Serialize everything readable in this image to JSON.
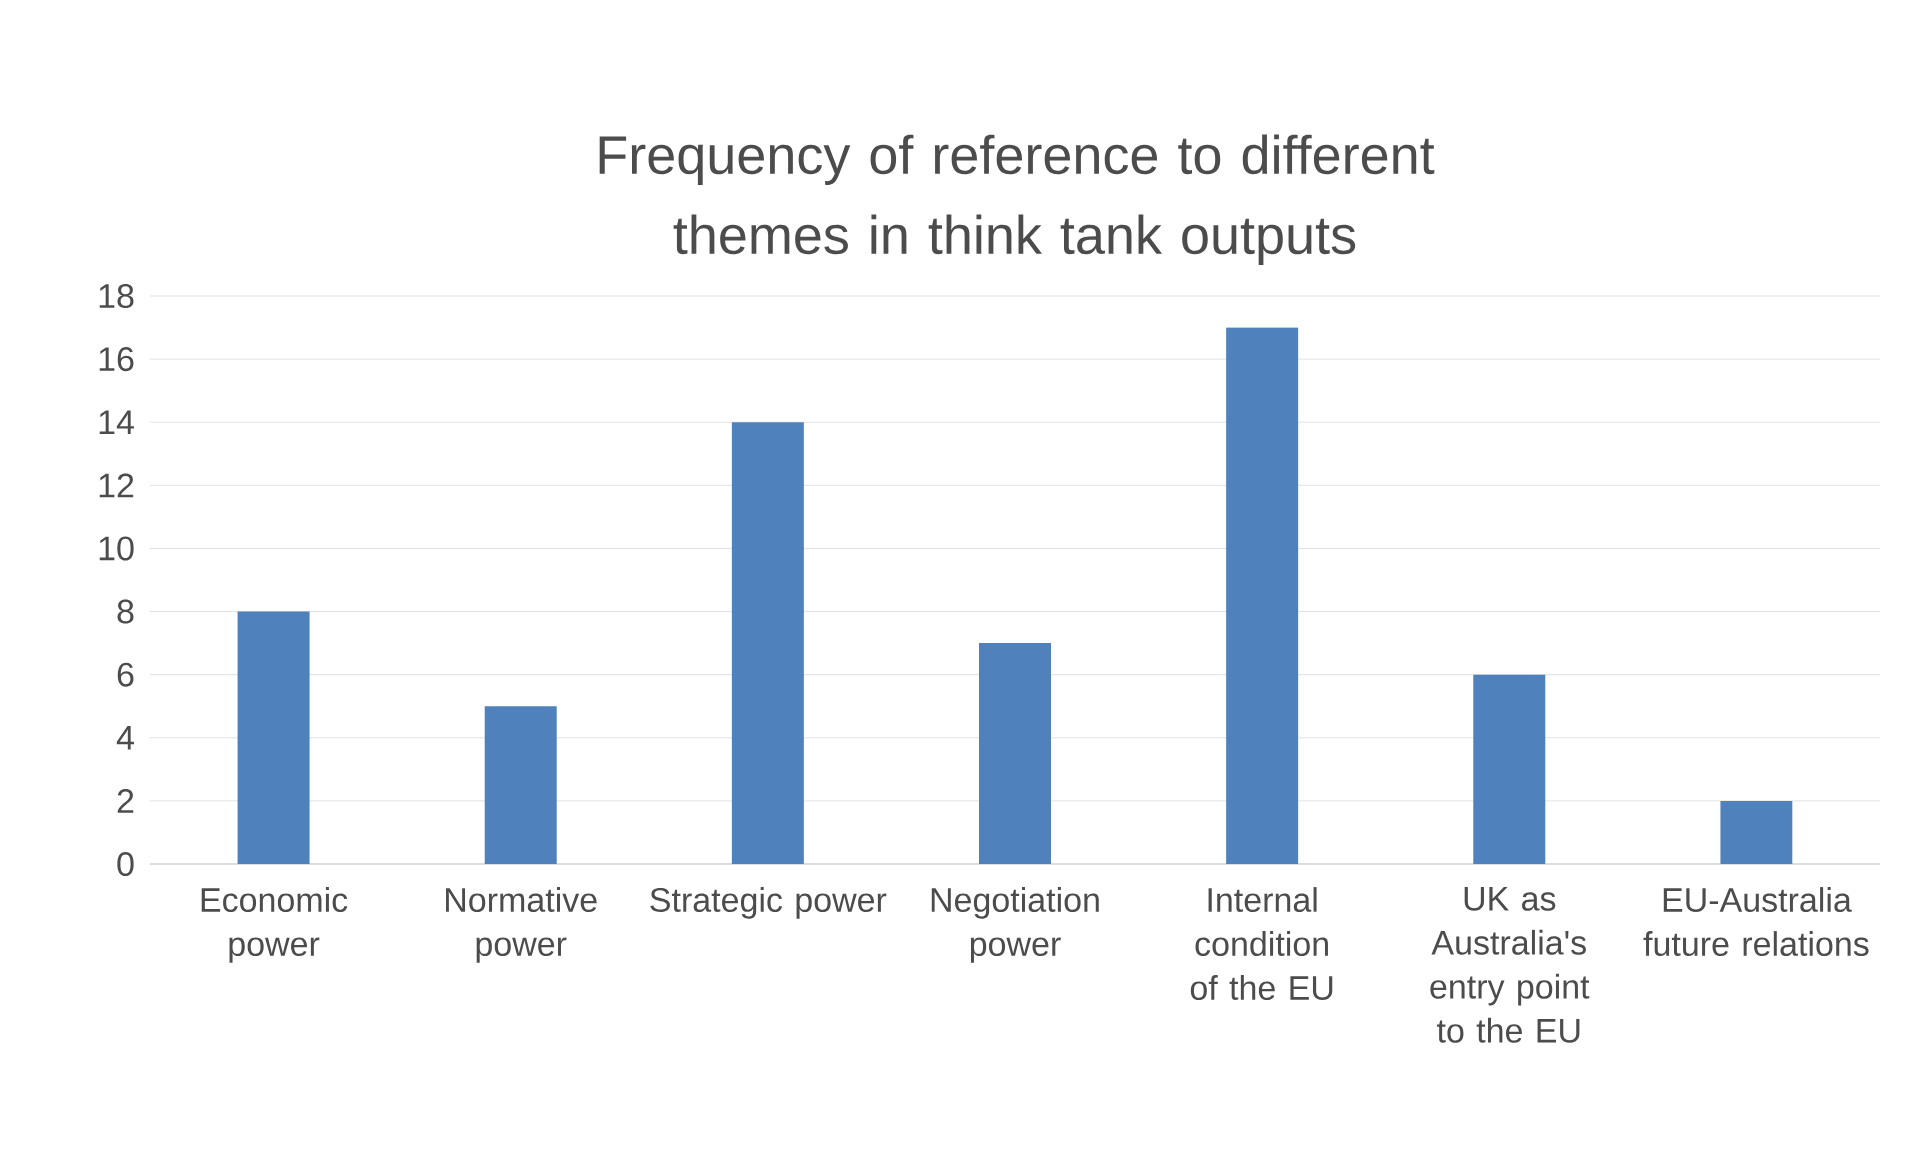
{
  "chart_data": {
    "type": "bar",
    "title": "Frequency of reference to different themes in think tank outputs",
    "categories": [
      "Economic power",
      "Normative power",
      "Strategic power",
      "Negotiation power",
      "Internal condition of the EU",
      "UK as Australia's entry point to the EU",
      "EU-Australia future relations"
    ],
    "values": [
      8,
      5,
      14,
      7,
      17,
      6,
      2
    ],
    "color": "#4f81bd",
    "ylim": [
      0,
      18
    ],
    "yticks": [
      0,
      2,
      4,
      6,
      8,
      10,
      12,
      14,
      16,
      18
    ],
    "grid": "y"
  }
}
